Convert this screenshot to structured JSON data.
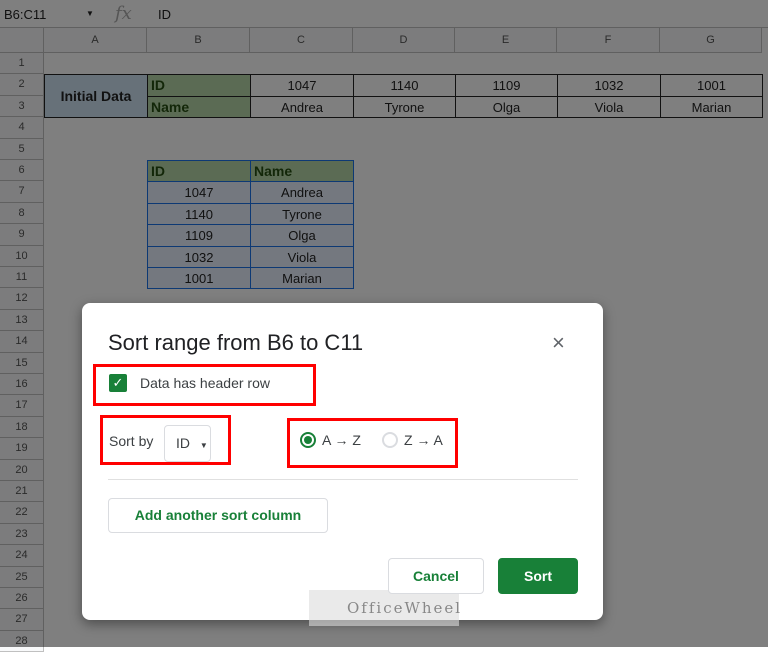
{
  "formula_bar": {
    "name_box": "B6:C11",
    "fx_icon": "fx",
    "value": "ID"
  },
  "columns": [
    "A",
    "B",
    "C",
    "D",
    "E",
    "F",
    "G"
  ],
  "rows": [
    "1",
    "2",
    "3",
    "4",
    "5",
    "6",
    "7",
    "8",
    "9",
    "10",
    "11",
    "12",
    "13",
    "14",
    "15",
    "16",
    "17",
    "18",
    "19",
    "20",
    "21",
    "22",
    "23",
    "24",
    "25",
    "26",
    "27",
    "28"
  ],
  "initial_data": {
    "label": "Initial Data",
    "id_label": "ID",
    "name_label": "Name",
    "ids": [
      "1047",
      "1140",
      "1109",
      "1032",
      "1001"
    ],
    "names": [
      "Andrea",
      "Tyrone",
      "Olga",
      "Viola",
      "Marian"
    ]
  },
  "table": {
    "headers": [
      "ID",
      "Name"
    ],
    "rows": [
      [
        "1047",
        "Andrea"
      ],
      [
        "1140",
        "Tyrone"
      ],
      [
        "1109",
        "Olga"
      ],
      [
        "1032",
        "Viola"
      ],
      [
        "1001",
        "Marian"
      ]
    ]
  },
  "dialog": {
    "title": "Sort range from B6 to C11",
    "close": "×",
    "header_checkbox_label": "Data has header row",
    "header_checked": true,
    "sort_by_label": "Sort by",
    "sort_by_value": "ID",
    "order_options": [
      "A → Z",
      "Z → A"
    ],
    "order_selected": "A → Z",
    "add_column": "Add another sort column",
    "cancel": "Cancel",
    "sort": "Sort",
    "watermark": "OfficeWheel"
  },
  "colors": {
    "accent": "#188038",
    "highlight": "#ff0000"
  }
}
